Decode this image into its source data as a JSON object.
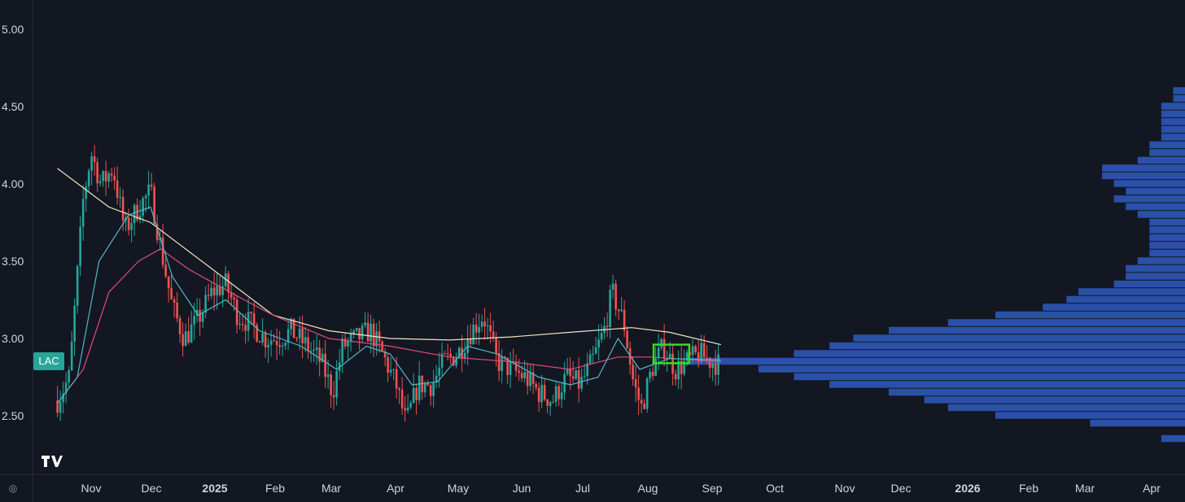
{
  "chart_data": {
    "type": "candlestick",
    "ticker": "LAC",
    "y_ticks": [
      "5.00",
      "4.50",
      "4.00",
      "3.50",
      "3.00",
      "2.50"
    ],
    "x_ticks": [
      "Nov",
      "Dec",
      "2025",
      "Feb",
      "Mar",
      "Apr",
      "May",
      "Jun",
      "Jul",
      "Aug",
      "Sep",
      "Oct",
      "Nov",
      "Dec",
      "2026",
      "Feb",
      "Mar",
      "Apr"
    ],
    "x_ticks_bold": [
      "2025",
      "2026"
    ],
    "ylim": [
      2.2,
      5.2
    ],
    "price_path": [
      [
        "2024-10-15",
        2.6
      ],
      [
        "2024-10-21",
        2.75
      ],
      [
        "2024-10-28",
        3.9
      ],
      [
        "2024-11-01",
        4.2
      ],
      [
        "2024-11-06",
        4.0
      ],
      [
        "2024-11-12",
        4.1
      ],
      [
        "2024-11-18",
        3.7
      ],
      [
        "2024-11-25",
        3.85
      ],
      [
        "2024-12-01",
        3.95
      ],
      [
        "2024-12-06",
        3.6
      ],
      [
        "2024-12-12",
        3.2
      ],
      [
        "2024-12-18",
        3.0
      ],
      [
        "2024-12-24",
        3.1
      ],
      [
        "2025-01-01",
        3.3
      ],
      [
        "2025-01-08",
        3.35
      ],
      [
        "2025-01-14",
        3.15
      ],
      [
        "2025-01-20",
        3.1
      ],
      [
        "2025-01-28",
        3.0
      ],
      [
        "2025-02-04",
        3.0
      ],
      [
        "2025-02-10",
        3.05
      ],
      [
        "2025-02-18",
        2.95
      ],
      [
        "2025-02-25",
        2.85
      ],
      [
        "2025-03-03",
        2.65
      ],
      [
        "2025-03-08",
        2.95
      ],
      [
        "2025-03-15",
        3.0
      ],
      [
        "2025-03-22",
        3.05
      ],
      [
        "2025-03-28",
        2.9
      ],
      [
        "2025-04-04",
        2.7
      ],
      [
        "2025-04-09",
        2.45
      ],
      [
        "2025-04-15",
        2.7
      ],
      [
        "2025-04-22",
        2.7
      ],
      [
        "2025-04-28",
        2.85
      ],
      [
        "2025-05-05",
        2.9
      ],
      [
        "2025-05-12",
        3.05
      ],
      [
        "2025-05-18",
        3.15
      ],
      [
        "2025-05-25",
        2.85
      ],
      [
        "2025-06-01",
        2.8
      ],
      [
        "2025-06-08",
        2.75
      ],
      [
        "2025-06-15",
        2.65
      ],
      [
        "2025-06-22",
        2.6
      ],
      [
        "2025-06-29",
        2.75
      ],
      [
        "2025-07-06",
        2.7
      ],
      [
        "2025-07-12",
        2.85
      ],
      [
        "2025-07-18",
        3.05
      ],
      [
        "2025-07-22",
        3.3
      ],
      [
        "2025-07-28",
        3.1
      ],
      [
        "2025-08-02",
        2.7
      ],
      [
        "2025-08-06",
        2.55
      ],
      [
        "2025-08-11",
        2.8
      ],
      [
        "2025-08-17",
        2.95
      ],
      [
        "2025-08-23",
        2.8
      ],
      [
        "2025-08-29",
        2.85
      ],
      [
        "2025-09-04",
        2.9
      ],
      [
        "2025-09-10",
        2.85
      ],
      [
        "2025-09-15",
        2.83
      ]
    ],
    "ma_slow": [
      [
        "2024-10-15",
        4.1
      ],
      [
        "2024-11-10",
        3.85
      ],
      [
        "2024-12-01",
        3.75
      ],
      [
        "2025-01-01",
        3.45
      ],
      [
        "2025-02-01",
        3.15
      ],
      [
        "2025-03-01",
        3.05
      ],
      [
        "2025-04-01",
        3.0
      ],
      [
        "2025-05-01",
        2.99
      ],
      [
        "2025-06-01",
        3.01
      ],
      [
        "2025-07-01",
        3.04
      ],
      [
        "2025-08-01",
        3.07
      ],
      [
        "2025-08-20",
        3.04
      ],
      [
        "2025-09-15",
        2.96
      ]
    ],
    "ma_mid": [
      [
        "2024-10-15",
        2.58
      ],
      [
        "2024-10-28",
        2.8
      ],
      [
        "2024-11-10",
        3.3
      ],
      [
        "2024-11-25",
        3.5
      ],
      [
        "2024-12-06",
        3.58
      ],
      [
        "2024-12-20",
        3.45
      ],
      [
        "2025-01-10",
        3.3
      ],
      [
        "2025-02-01",
        3.15
      ],
      [
        "2025-03-01",
        3.0
      ],
      [
        "2025-04-01",
        2.95
      ],
      [
        "2025-05-01",
        2.88
      ],
      [
        "2025-06-01",
        2.85
      ],
      [
        "2025-07-01",
        2.8
      ],
      [
        "2025-07-25",
        2.88
      ],
      [
        "2025-08-10",
        2.88
      ],
      [
        "2025-09-15",
        2.85
      ]
    ],
    "ma_fast": [
      [
        "2024-10-15",
        2.58
      ],
      [
        "2024-10-25",
        2.75
      ],
      [
        "2024-11-05",
        3.5
      ],
      [
        "2024-11-20",
        3.8
      ],
      [
        "2024-12-01",
        3.85
      ],
      [
        "2024-12-12",
        3.4
      ],
      [
        "2024-12-25",
        3.15
      ],
      [
        "2025-01-08",
        3.25
      ],
      [
        "2025-01-25",
        3.05
      ],
      [
        "2025-02-15",
        2.95
      ],
      [
        "2025-03-05",
        2.8
      ],
      [
        "2025-03-20",
        2.95
      ],
      [
        "2025-04-01",
        2.9
      ],
      [
        "2025-04-12",
        2.7
      ],
      [
        "2025-04-25",
        2.72
      ],
      [
        "2025-05-10",
        2.95
      ],
      [
        "2025-05-25",
        2.9
      ],
      [
        "2025-06-15",
        2.75
      ],
      [
        "2025-07-01",
        2.7
      ],
      [
        "2025-07-15",
        2.75
      ],
      [
        "2025-07-25",
        3.0
      ],
      [
        "2025-08-05",
        2.8
      ],
      [
        "2025-08-20",
        2.87
      ],
      [
        "2025-09-15",
        2.86
      ]
    ],
    "highlight_box": {
      "x0": "2025-08-12",
      "x1": "2025-08-30",
      "y0": 2.84,
      "y1": 2.96
    },
    "volume_profile": [
      [
        2.35,
        0.02
      ],
      [
        2.45,
        0.08
      ],
      [
        2.5,
        0.16
      ],
      [
        2.55,
        0.2
      ],
      [
        2.6,
        0.22
      ],
      [
        2.65,
        0.25
      ],
      [
        2.7,
        0.3
      ],
      [
        2.75,
        0.33
      ],
      [
        2.8,
        0.36
      ],
      [
        2.85,
        0.42
      ],
      [
        2.9,
        0.33
      ],
      [
        2.95,
        0.3
      ],
      [
        3.0,
        0.28
      ],
      [
        3.05,
        0.25
      ],
      [
        3.1,
        0.2
      ],
      [
        3.15,
        0.16
      ],
      [
        3.2,
        0.12
      ],
      [
        3.25,
        0.1
      ],
      [
        3.3,
        0.09
      ],
      [
        3.35,
        0.06
      ],
      [
        3.4,
        0.05
      ],
      [
        3.45,
        0.05
      ],
      [
        3.5,
        0.04
      ],
      [
        3.55,
        0.03
      ],
      [
        3.6,
        0.03
      ],
      [
        3.65,
        0.03
      ],
      [
        3.7,
        0.03
      ],
      [
        3.75,
        0.03
      ],
      [
        3.8,
        0.04
      ],
      [
        3.85,
        0.05
      ],
      [
        3.9,
        0.06
      ],
      [
        3.95,
        0.05
      ],
      [
        4.0,
        0.06
      ],
      [
        4.05,
        0.07
      ],
      [
        4.1,
        0.07
      ],
      [
        4.15,
        0.04
      ],
      [
        4.2,
        0.03
      ],
      [
        4.25,
        0.03
      ],
      [
        4.3,
        0.02
      ],
      [
        4.35,
        0.02
      ],
      [
        4.4,
        0.02
      ],
      [
        4.45,
        0.02
      ],
      [
        4.5,
        0.02
      ],
      [
        4.55,
        0.01
      ],
      [
        4.6,
        0.01
      ]
    ],
    "colors": {
      "background": "#131722",
      "up": "#26a69a",
      "down": "#ef5350",
      "ma_slow": "#f0e6c0",
      "ma_mid": "#e04b7a",
      "ma_fast": "#4fb8c9",
      "highlight": "#33e01c",
      "volume_profile": "#2f5bbf",
      "grid": "#2a2e39"
    }
  }
}
